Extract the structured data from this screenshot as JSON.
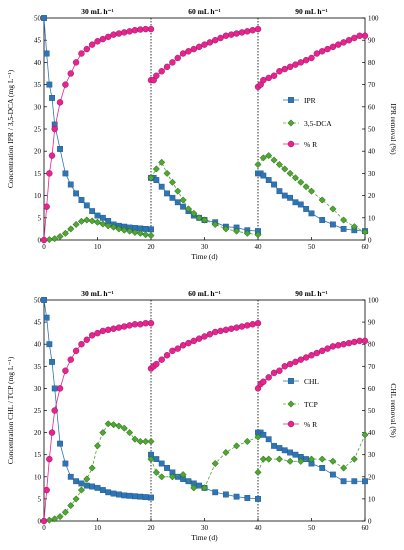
{
  "chart_data": [
    {
      "type": "line",
      "phase_labels": [
        "30 mL h⁻¹",
        "60 mL h⁻¹",
        "90 mL h⁻¹"
      ],
      "phase_boundaries": [
        20,
        40
      ],
      "xlabel": "Time (d)",
      "ylabel": "Concentration IPR / 3,5-DCA (mg L⁻¹)",
      "y2label": "IPR removal (%)",
      "xlim": [
        0,
        60
      ],
      "ylim": [
        0,
        50
      ],
      "y2lim": [
        0,
        100
      ],
      "xticks": [
        0,
        10,
        20,
        30,
        40,
        50,
        60
      ],
      "yticks": [
        0,
        5,
        10,
        15,
        20,
        25,
        30,
        35,
        40,
        45,
        50
      ],
      "y2ticks": [
        0,
        10,
        20,
        30,
        40,
        50,
        60,
        70,
        80,
        90,
        100
      ],
      "legend_position": "right",
      "series": [
        {
          "name": "IPR",
          "axis": "left",
          "marker": "square",
          "color": "#2e75b6",
          "line": "solid",
          "x": [
            0,
            0.5,
            1,
            1.5,
            2,
            3,
            4,
            5,
            6,
            7,
            8,
            9,
            10,
            11,
            12,
            13,
            14,
            15,
            16,
            17,
            18,
            19,
            20,
            20,
            20.5,
            21,
            22,
            23,
            24,
            25,
            26,
            27,
            28,
            29,
            30,
            32,
            34,
            36,
            38,
            40,
            40,
            40.5,
            41,
            42,
            43,
            44,
            45,
            46,
            47,
            48,
            49,
            50,
            52,
            54,
            56,
            58,
            60
          ],
          "y": [
            50,
            42,
            35,
            32,
            26,
            20.5,
            15,
            12.5,
            10.5,
            9,
            7.8,
            6.5,
            5.5,
            5,
            4.3,
            3.5,
            3.2,
            3,
            2.8,
            2.7,
            2.6,
            2.5,
            2.4,
            14,
            14,
            13.5,
            12,
            10.5,
            9.5,
            8.5,
            7.5,
            6.5,
            5.5,
            5,
            4.5,
            4,
            3,
            2.8,
            2.2,
            2,
            15,
            15,
            14.5,
            13.5,
            12.5,
            11,
            10,
            9.5,
            8.5,
            8,
            7,
            6,
            4.5,
            3.5,
            2.5,
            2.2,
            2
          ]
        },
        {
          "name": "3,5-DCA",
          "axis": "left",
          "marker": "diamond",
          "color": "#4ea72e",
          "line": "dashed",
          "x": [
            0,
            1,
            2,
            3,
            4,
            5,
            6,
            7,
            8,
            9,
            10,
            11,
            12,
            13,
            14,
            15,
            16,
            17,
            18,
            19,
            20,
            20,
            21,
            22,
            23,
            24,
            25,
            26,
            27,
            28,
            29,
            30,
            32,
            34,
            36,
            38,
            40,
            40,
            41,
            42,
            43,
            44,
            45,
            46,
            47,
            48,
            49,
            50,
            52,
            54,
            56,
            58,
            60
          ],
          "y": [
            0,
            0.1,
            0.3,
            0.8,
            1.5,
            2.5,
            3.5,
            4.2,
            4.5,
            4.3,
            4,
            3.6,
            3.2,
            2.9,
            2.5,
            2.2,
            2,
            1.7,
            1.5,
            1.2,
            1,
            14,
            16,
            17.5,
            15,
            13,
            11,
            9,
            7,
            6,
            5,
            4.5,
            3.5,
            2.5,
            2,
            1.5,
            1.2,
            17,
            18.5,
            19,
            18,
            17,
            16,
            15,
            14,
            13,
            12,
            11,
            9,
            7,
            4.5,
            3,
            1.8
          ]
        },
        {
          "name": "% R",
          "axis": "right",
          "marker": "circle",
          "color": "#e8228f",
          "line": "solid",
          "x": [
            0,
            0.5,
            1,
            1.5,
            2,
            3,
            4,
            5,
            6,
            7,
            8,
            9,
            10,
            11,
            12,
            13,
            14,
            15,
            16,
            17,
            18,
            19,
            20,
            20,
            20.5,
            21,
            22,
            23,
            24,
            25,
            26,
            27,
            28,
            29,
            30,
            31,
            32,
            33,
            34,
            35,
            36,
            37,
            38,
            39,
            40,
            40,
            40.5,
            41,
            42,
            43,
            44,
            45,
            46,
            47,
            48,
            49,
            50,
            51,
            52,
            53,
            54,
            55,
            56,
            57,
            58,
            59,
            60
          ],
          "y": [
            0,
            15,
            30,
            38,
            50,
            62,
            70,
            75,
            80,
            84,
            86,
            88,
            89.5,
            90.5,
            91.5,
            92.5,
            93,
            93.5,
            94,
            94.5,
            94.8,
            95,
            95,
            72,
            72,
            74,
            76,
            78,
            80,
            82,
            84,
            85,
            86,
            87,
            88,
            89,
            90,
            91,
            92,
            92.5,
            93,
            93.5,
            94,
            94.5,
            95,
            69,
            70,
            72,
            73,
            74,
            76,
            77,
            78,
            79,
            80,
            81,
            82,
            84,
            85,
            86,
            87,
            88,
            89,
            90,
            91,
            92,
            92
          ]
        }
      ]
    },
    {
      "type": "line",
      "phase_labels": [
        "30 mL h⁻¹",
        "60 mL h⁻¹",
        "90 mL h⁻¹"
      ],
      "phase_boundaries": [
        20,
        40
      ],
      "xlabel": "Time (d)",
      "ylabel": "Concentration CHL / TCP (mg L⁻¹)",
      "y2label": "CHL removal (%)",
      "xlim": [
        0,
        60
      ],
      "ylim": [
        0,
        50
      ],
      "y2lim": [
        0,
        100
      ],
      "xticks": [
        0,
        10,
        20,
        30,
        40,
        50,
        60
      ],
      "yticks": [
        0,
        5,
        10,
        15,
        20,
        25,
        30,
        35,
        40,
        45,
        50
      ],
      "y2ticks": [
        0,
        10,
        20,
        30,
        40,
        50,
        60,
        70,
        80,
        90,
        100
      ],
      "legend_position": "right",
      "series": [
        {
          "name": "CHL",
          "axis": "left",
          "marker": "square",
          "color": "#2e75b6",
          "line": "solid",
          "x": [
            0,
            0.5,
            1,
            1.5,
            2,
            3,
            4,
            5,
            6,
            7,
            8,
            9,
            10,
            11,
            12,
            13,
            14,
            15,
            16,
            17,
            18,
            19,
            20,
            20,
            21,
            22,
            23,
            24,
            25,
            26,
            27,
            28,
            29,
            30,
            32,
            34,
            36,
            38,
            40,
            40,
            40.5,
            41,
            42,
            43,
            44,
            45,
            46,
            47,
            48,
            49,
            50,
            52,
            54,
            56,
            58,
            60
          ],
          "y": [
            50,
            46,
            40,
            36,
            30,
            17.5,
            13,
            10,
            9,
            8.5,
            8,
            7.8,
            7.5,
            7,
            6.5,
            6.2,
            6,
            5.8,
            5.7,
            5.6,
            5.5,
            5.4,
            5.3,
            15,
            14,
            13,
            12,
            11,
            10,
            9.5,
            9,
            8.5,
            8,
            7.5,
            6.5,
            6,
            5.5,
            5.2,
            5,
            20,
            20,
            19.5,
            18.5,
            17,
            16.5,
            16,
            15.5,
            15,
            14.5,
            14,
            13,
            12,
            10.5,
            9,
            9,
            9
          ]
        },
        {
          "name": "TCP",
          "axis": "left",
          "marker": "diamond",
          "color": "#4ea72e",
          "line": "dashed",
          "x": [
            0,
            1,
            2,
            3,
            4,
            5,
            6,
            7,
            8,
            9,
            10,
            11,
            12,
            13,
            14,
            15,
            16,
            17,
            18,
            19,
            20,
            20,
            21,
            22,
            24,
            26,
            28,
            30,
            32,
            34,
            36,
            38,
            40,
            40,
            41,
            42,
            44,
            46,
            48,
            50,
            52,
            54,
            56,
            58,
            60
          ],
          "y": [
            0,
            0.2,
            0.5,
            1,
            2,
            3.5,
            5,
            7,
            9.5,
            12,
            17,
            20,
            22,
            21.8,
            21.5,
            21,
            20,
            18.5,
            18,
            18,
            18,
            14,
            11,
            10,
            10,
            10.5,
            7.5,
            7.5,
            13,
            15.5,
            17,
            18,
            19,
            11,
            14,
            14,
            14,
            13.5,
            13.5,
            14,
            14,
            13.5,
            12,
            14,
            19.5
          ]
        },
        {
          "name": "% R",
          "axis": "right",
          "marker": "circle",
          "color": "#e8228f",
          "line": "solid",
          "x": [
            0,
            0.5,
            1,
            1.5,
            2,
            3,
            4,
            5,
            6,
            7,
            8,
            9,
            10,
            11,
            12,
            13,
            14,
            15,
            16,
            17,
            18,
            19,
            20,
            20,
            20.5,
            21,
            22,
            23,
            24,
            25,
            26,
            27,
            28,
            29,
            30,
            31,
            32,
            33,
            34,
            35,
            36,
            37,
            38,
            39,
            40,
            40,
            40.5,
            41,
            42,
            43,
            44,
            45,
            46,
            47,
            48,
            49,
            50,
            51,
            52,
            53,
            54,
            55,
            56,
            57,
            58,
            59,
            60
          ],
          "y": [
            0,
            14,
            28,
            40,
            50,
            60,
            68,
            73,
            77,
            80,
            82,
            84,
            85,
            86,
            86.5,
            87,
            87.5,
            88,
            88.5,
            89,
            89,
            89.5,
            89.5,
            69,
            70,
            71,
            73,
            75,
            77,
            78,
            79.5,
            80.5,
            81.5,
            82.5,
            83.5,
            84.5,
            85.5,
            86,
            86.5,
            87,
            87.5,
            88,
            88.5,
            89,
            89.5,
            60,
            62,
            63,
            65,
            67,
            68,
            70,
            71,
            72,
            73,
            74,
            75,
            76,
            77,
            78,
            79,
            79.5,
            80,
            80.5,
            81,
            81.5,
            81.5
          ]
        }
      ]
    }
  ]
}
